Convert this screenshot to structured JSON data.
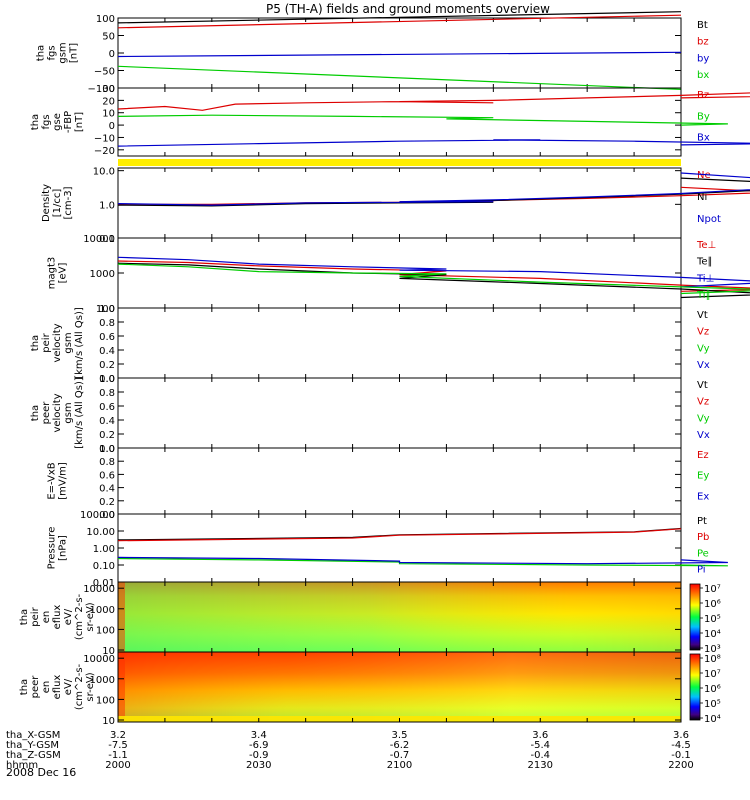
{
  "title": "P5 (TH-A) fields and ground moments overview",
  "footer": {
    "rows": [
      {
        "label": "tha_X-GSM",
        "values": [
          "3.2",
          "3.4",
          "3.5",
          "3.6",
          "3.6"
        ]
      },
      {
        "label": "tha_Y-GSM",
        "values": [
          "-7.5",
          "-6.9",
          "-6.2",
          "-5.4",
          "-4.5"
        ]
      },
      {
        "label": "tha_Z-GSM",
        "values": [
          "-1.1",
          "-0.9",
          "-0.7",
          "-0.4",
          "-0.1"
        ]
      },
      {
        "label": "hhmm",
        "values": [
          "2000",
          "2030",
          "2100",
          "2130",
          "2200"
        ]
      }
    ],
    "date": "2008 Dec 16"
  },
  "chart_data": [
    {
      "type": "line",
      "panel": "fgs-gsm",
      "ylabel_lines": [
        "tha",
        "fgs",
        "gsm",
        "[nT]"
      ],
      "ylim": [
        -100,
        100
      ],
      "yticks": [
        100,
        50,
        0,
        -50,
        -100
      ],
      "ytick_labels": [
        "100",
        "50",
        "0",
        "−50",
        "−100"
      ],
      "x": [
        2000,
        2200
      ],
      "series": [
        {
          "name": "Bt",
          "color": "#000000",
          "x": [
            2000,
            2200
          ],
          "y": [
            86,
            118
          ]
        },
        {
          "name": "bz",
          "color": "#dd0000",
          "x": [
            2000,
            2200
          ],
          "y": [
            72,
            108
          ]
        },
        {
          "name": "by",
          "color": "#0000cc",
          "x": [
            2000,
            2200
          ],
          "y": [
            -10,
            2
          ]
        },
        {
          "name": "bx",
          "color": "#00cc00",
          "x": [
            2000,
            2200
          ],
          "y": [
            -38,
            -104
          ]
        }
      ]
    },
    {
      "type": "line",
      "panel": "fgs-gse",
      "ylabel_lines": [
        "tha",
        "fgs",
        "gse",
        "-FBP",
        "[nT]"
      ],
      "ylim": [
        -25,
        30
      ],
      "yticks": [
        30,
        20,
        10,
        0,
        -10,
        -20
      ],
      "ytick_labels": [
        "30",
        "20",
        "10",
        "0",
        "−10",
        "−20"
      ],
      "series": [
        {
          "name": "Bz",
          "color": "#dd0000",
          "x": [
            2000,
            2010,
            2018,
            2025,
            2040,
            2060,
            2080,
            2100,
            2120,
            2140,
            2160,
            2175,
            2190,
            2200
          ],
          "y": [
            13,
            15,
            12,
            17,
            18,
            19,
            18,
            19,
            20,
            22,
            24,
            26,
            24,
            22
          ]
        },
        {
          "name": "By",
          "color": "#00cc00",
          "x": [
            2000,
            2020,
            2050,
            2080,
            2110,
            2140,
            2170,
            2200
          ],
          "y": [
            7,
            8,
            7,
            6,
            5,
            3,
            1,
            0
          ]
        },
        {
          "name": "Bx",
          "color": "#0000cc",
          "x": [
            2000,
            2030,
            2060,
            2090,
            2120,
            2150,
            2180,
            2200
          ],
          "y": [
            -17,
            -15,
            -13,
            -12,
            -12,
            -13,
            -15,
            -16
          ]
        }
      ]
    },
    {
      "type": "line",
      "panel": "density",
      "ylabel_lines": [
        "Density",
        "[1/cc]",
        "[cm-3]"
      ],
      "yscale": "log",
      "ylim": [
        0.1,
        12
      ],
      "yticks": [
        10,
        1,
        0.1
      ],
      "ytick_labels": [
        "10.0",
        "1.0",
        "0.1"
      ],
      "series": [
        {
          "name": "Ne",
          "color": "#dd0000",
          "x": [
            2000,
            2020,
            2040,
            2060,
            2080,
            2100,
            2120,
            2140,
            2160,
            2180,
            2200
          ],
          "y": [
            1.0,
            1.0,
            1.1,
            1.15,
            1.2,
            1.2,
            1.3,
            1.5,
            1.8,
            2.3,
            3.2
          ]
        },
        {
          "name": "Ni",
          "color": "#000000",
          "x": [
            2000,
            2020,
            2040,
            2060,
            2080,
            2100,
            2120,
            2140,
            2160,
            2180,
            2190,
            2200
          ],
          "y": [
            0.95,
            0.9,
            1.05,
            1.1,
            1.15,
            1.15,
            1.3,
            1.6,
            2.0,
            2.8,
            3.8,
            6.0
          ]
        },
        {
          "name": "Npot",
          "color": "#0000cc",
          "x": [
            2000,
            2020,
            2040,
            2060,
            2080,
            2100,
            2120,
            2140,
            2160,
            2180,
            2190,
            2200
          ],
          "y": [
            1.05,
            0.95,
            1.1,
            1.15,
            1.2,
            1.2,
            1.35,
            1.65,
            2.1,
            3.0,
            4.5,
            8.5
          ]
        }
      ]
    },
    {
      "type": "line",
      "panel": "temperature",
      "ylabel_lines": [
        "magt3",
        "[eV]"
      ],
      "yscale": "log",
      "ylim": [
        100,
        10000
      ],
      "yticks": [
        10000,
        1000,
        100
      ],
      "ytick_labels": [
        "10000",
        "1000",
        "100"
      ],
      "series": [
        {
          "name": "Te⊥",
          "color": "#dd0000",
          "x": [
            2000,
            2015,
            2030,
            2050,
            2070,
            2100,
            2130,
            2160,
            2180,
            2200
          ],
          "y": [
            2200,
            2000,
            1600,
            1300,
            1150,
            900,
            700,
            450,
            350,
            300
          ]
        },
        {
          "name": "Te∥",
          "color": "#000000",
          "x": [
            2000,
            2015,
            2030,
            2050,
            2070,
            2100,
            2130,
            2160,
            2180,
            2200
          ],
          "y": [
            1900,
            1700,
            1300,
            1000,
            900,
            700,
            500,
            350,
            250,
            200
          ]
        },
        {
          "name": "Ti⊥",
          "color": "#0000cc",
          "x": [
            2000,
            2015,
            2030,
            2050,
            2070,
            2100,
            2130,
            2160,
            2180,
            2200
          ],
          "y": [
            2800,
            2400,
            1800,
            1500,
            1300,
            1200,
            1100,
            750,
            550,
            400
          ]
        },
        {
          "name": "Ti∥",
          "color": "#00cc00",
          "x": [
            2000,
            2015,
            2030,
            2050,
            2070,
            2100,
            2130,
            2160,
            2180,
            2200
          ],
          "y": [
            1800,
            1500,
            1100,
            1000,
            950,
            800,
            550,
            400,
            330,
            260
          ]
        }
      ]
    },
    {
      "type": "line",
      "panel": "peir-velocity",
      "ylabel_lines": [
        "tha",
        "peir",
        "velocity",
        "gsm",
        "[km/s (All Qs)]"
      ],
      "ylim": [
        0,
        1
      ],
      "yticks": [
        1.0,
        0.8,
        0.6,
        0.4,
        0.2,
        0.0
      ],
      "ytick_labels": [
        "1.0",
        "0.8",
        "0.6",
        "0.4",
        "0.2",
        "0.0"
      ],
      "series": [
        {
          "name": "Vt",
          "color": "#000000",
          "x": [],
          "y": []
        },
        {
          "name": "Vz",
          "color": "#dd0000",
          "x": [],
          "y": []
        },
        {
          "name": "Vy",
          "color": "#00cc00",
          "x": [],
          "y": []
        },
        {
          "name": "Vx",
          "color": "#0000cc",
          "x": [],
          "y": []
        }
      ]
    },
    {
      "type": "line",
      "panel": "peer-velocity",
      "ylabel_lines": [
        "tha",
        "peer",
        "velocity",
        "gsm",
        "[km/s (All Qs)]"
      ],
      "ylim": [
        0,
        1
      ],
      "yticks": [
        1.0,
        0.8,
        0.6,
        0.4,
        0.2,
        0.0
      ],
      "ytick_labels": [
        "1.0",
        "0.8",
        "0.6",
        "0.4",
        "0.2",
        "0.0"
      ],
      "series": [
        {
          "name": "Vt",
          "color": "#000000",
          "x": [],
          "y": []
        },
        {
          "name": "Vz",
          "color": "#dd0000",
          "x": [],
          "y": []
        },
        {
          "name": "Vy",
          "color": "#00cc00",
          "x": [],
          "y": []
        },
        {
          "name": "Vx",
          "color": "#0000cc",
          "x": [],
          "y": []
        }
      ]
    },
    {
      "type": "line",
      "panel": "e-field",
      "ylabel_lines": [
        "E=-VxB",
        "[mV/m]"
      ],
      "ylim": [
        0,
        1
      ],
      "yticks": [
        1.0,
        0.8,
        0.6,
        0.4,
        0.2,
        0.0
      ],
      "ytick_labels": [
        "1.0",
        "0.8",
        "0.6",
        "0.4",
        "0.2",
        "0.0"
      ],
      "series": [
        {
          "name": "Ez",
          "color": "#dd0000",
          "x": [],
          "y": []
        },
        {
          "name": "Ey",
          "color": "#00cc00",
          "x": [],
          "y": []
        },
        {
          "name": "Ex",
          "color": "#0000cc",
          "x": [],
          "y": []
        }
      ]
    },
    {
      "type": "line",
      "panel": "pressure",
      "ylabel_lines": [
        "Pressure",
        "[nPa]"
      ],
      "yscale": "log",
      "ylim": [
        0.01,
        100
      ],
      "yticks": [
        100,
        10,
        1,
        0.1,
        0.01
      ],
      "ytick_labels": [
        "100.00",
        "10.00",
        "1.00",
        "0.10",
        "0.01"
      ],
      "series": [
        {
          "name": "Pt",
          "color": "#000000",
          "x": [
            2000,
            2050,
            2100,
            2150,
            2200
          ],
          "y": [
            3.0,
            4.2,
            6.0,
            9.0,
            14.0
          ]
        },
        {
          "name": "Pb",
          "color": "#dd0000",
          "x": [
            2000,
            2050,
            2100,
            2150,
            2200
          ],
          "y": [
            2.7,
            3.9,
            5.7,
            8.6,
            13.5
          ]
        },
        {
          "name": "Pe",
          "color": "#00cc00",
          "x": [
            2000,
            2030,
            2060,
            2100,
            2140,
            2170,
            2200
          ],
          "y": [
            0.24,
            0.2,
            0.15,
            0.12,
            0.1,
            0.09,
            0.1
          ]
        },
        {
          "name": "Pi",
          "color": "#0000cc",
          "x": [
            2000,
            2030,
            2060,
            2100,
            2140,
            2170,
            2200
          ],
          "y": [
            0.28,
            0.24,
            0.17,
            0.14,
            0.12,
            0.14,
            0.2
          ]
        }
      ]
    },
    {
      "type": "heatmap",
      "panel": "peir-en-eflux",
      "ylabel_lines": [
        "tha",
        "peir",
        "en",
        "eflux",
        "eV/",
        "(cm^2-s-",
        "sr-eV)"
      ],
      "yscale": "log",
      "ylim": [
        8,
        20000
      ],
      "yticks": [
        10000,
        1000,
        100,
        10
      ],
      "ytick_labels": [
        "10000",
        "1000",
        "100",
        "10"
      ],
      "colorbar": {
        "scale": "log",
        "range": [
          1000,
          10000000
        ],
        "tick_labels": [
          "10⁷",
          "10⁶",
          "10⁵",
          "10⁴",
          "10³"
        ]
      }
    },
    {
      "type": "heatmap",
      "panel": "peer-en-eflux",
      "ylabel_lines": [
        "tha",
        "peer",
        "en",
        "eflux",
        "eV/",
        "(cm^2-s-",
        "sr-eV)"
      ],
      "yscale": "log",
      "ylim": [
        8,
        20000
      ],
      "yticks": [
        10000,
        1000,
        100,
        10
      ],
      "ytick_labels": [
        "10000",
        "1000",
        "100",
        "10"
      ],
      "colorbar": {
        "scale": "log",
        "range": [
          10000,
          100000000
        ],
        "tick_labels": [
          "10⁸",
          "10⁷",
          "10⁶",
          "10⁵",
          "10⁴"
        ]
      }
    }
  ],
  "colors": {
    "separator": "#ffee00",
    "red": "#dd0000",
    "green": "#00cc00",
    "blue": "#0000cc",
    "black": "#000000"
  }
}
